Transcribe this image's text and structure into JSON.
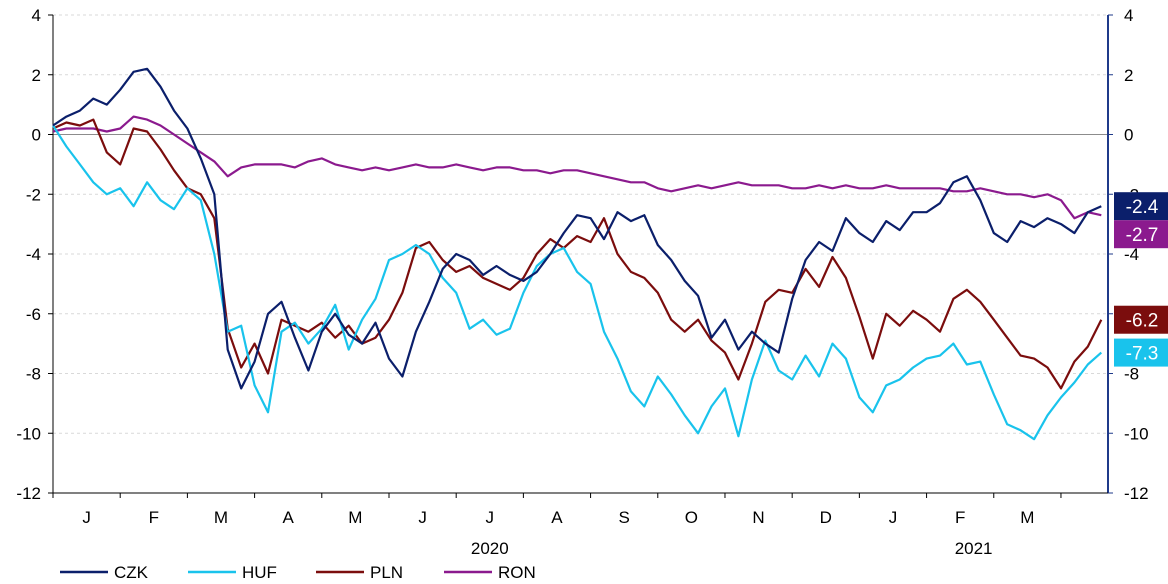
{
  "chart_data": {
    "type": "line",
    "title": "",
    "xlabel": "",
    "ylabel": "",
    "ylim": [
      -12,
      4
    ],
    "y_ticks": [
      4,
      2,
      0,
      -2,
      -4,
      -6,
      -8,
      -10,
      -12
    ],
    "y_ticks_right": [
      4,
      2,
      0,
      -2,
      -4,
      -6,
      -8,
      -10,
      -12
    ],
    "grid": true,
    "legend_placement": "bottom-left",
    "x_range_months": [
      0,
      15.7
    ],
    "month_labels": [
      "J",
      "F",
      "M",
      "A",
      "M",
      "J",
      "J",
      "A",
      "S",
      "O",
      "N",
      "D",
      "J",
      "F",
      "M"
    ],
    "year_labels": [
      {
        "label": "2020",
        "month_index": 6
      },
      {
        "label": "2021",
        "month_index": 13.2
      }
    ],
    "series": [
      {
        "name": "CZK",
        "color": "#0b1f6b",
        "end_label": "-2.4",
        "x": [
          0,
          0.2,
          0.4,
          0.6,
          0.8,
          1.0,
          1.2,
          1.4,
          1.6,
          1.8,
          2.0,
          2.2,
          2.4,
          2.6,
          2.8,
          3.0,
          3.2,
          3.4,
          3.6,
          3.8,
          4.0,
          4.2,
          4.4,
          4.6,
          4.8,
          5.0,
          5.2,
          5.4,
          5.6,
          5.8,
          6.0,
          6.2,
          6.4,
          6.6,
          6.8,
          7.0,
          7.2,
          7.4,
          7.6,
          7.8,
          8.0,
          8.2,
          8.4,
          8.6,
          8.8,
          9.0,
          9.2,
          9.4,
          9.6,
          9.8,
          10.0,
          10.2,
          10.4,
          10.6,
          10.8,
          11.0,
          11.2,
          11.4,
          11.6,
          11.8,
          12.0,
          12.2,
          12.4,
          12.6,
          12.8,
          13.0,
          13.2,
          13.4,
          13.6,
          13.8,
          14.0,
          14.2,
          14.4,
          14.6,
          14.8,
          15.0,
          15.2,
          15.4,
          15.6
        ],
        "values": [
          0.3,
          0.6,
          0.8,
          1.2,
          1.0,
          1.5,
          2.1,
          2.2,
          1.6,
          0.8,
          0.2,
          -0.8,
          -2.0,
          -7.2,
          -8.5,
          -7.6,
          -6.0,
          -5.6,
          -6.8,
          -7.9,
          -6.6,
          -6.0,
          -6.7,
          -7.0,
          -6.3,
          -7.5,
          -8.1,
          -6.6,
          -5.6,
          -4.5,
          -4.0,
          -4.2,
          -4.7,
          -4.4,
          -4.7,
          -4.9,
          -4.6,
          -4.0,
          -3.3,
          -2.7,
          -2.8,
          -3.5,
          -2.6,
          -2.9,
          -2.7,
          -3.7,
          -4.2,
          -4.9,
          -5.4,
          -6.8,
          -6.2,
          -7.2,
          -6.6,
          -7.0,
          -7.3,
          -5.5,
          -4.2,
          -3.6,
          -3.9,
          -2.8,
          -3.3,
          -3.6,
          -2.9,
          -3.2,
          -2.6,
          -2.6,
          -2.3,
          -1.6,
          -1.4,
          -2.2,
          -3.3,
          -3.6,
          -2.9,
          -3.1,
          -2.8,
          -3.0,
          -3.3,
          -2.6,
          -2.4
        ]
      },
      {
        "name": "HUF",
        "color": "#19c3ec",
        "end_label": "-7.3",
        "x": [
          0,
          0.2,
          0.4,
          0.6,
          0.8,
          1.0,
          1.2,
          1.4,
          1.6,
          1.8,
          2.0,
          2.2,
          2.4,
          2.6,
          2.8,
          3.0,
          3.2,
          3.4,
          3.6,
          3.8,
          4.0,
          4.2,
          4.4,
          4.6,
          4.8,
          5.0,
          5.2,
          5.4,
          5.6,
          5.8,
          6.0,
          6.2,
          6.4,
          6.6,
          6.8,
          7.0,
          7.2,
          7.4,
          7.6,
          7.8,
          8.0,
          8.2,
          8.4,
          8.6,
          8.8,
          9.0,
          9.2,
          9.4,
          9.6,
          9.8,
          10.0,
          10.2,
          10.4,
          10.6,
          10.8,
          11.0,
          11.2,
          11.4,
          11.6,
          11.8,
          12.0,
          12.2,
          12.4,
          12.6,
          12.8,
          13.0,
          13.2,
          13.4,
          13.6,
          13.8,
          14.0,
          14.2,
          14.4,
          14.6,
          14.8,
          15.0,
          15.2,
          15.4,
          15.6
        ],
        "values": [
          0.3,
          -0.4,
          -1.0,
          -1.6,
          -2.0,
          -1.8,
          -2.4,
          -1.6,
          -2.2,
          -2.5,
          -1.8,
          -2.2,
          -4.0,
          -6.6,
          -6.4,
          -8.4,
          -9.3,
          -6.6,
          -6.3,
          -7.0,
          -6.5,
          -5.7,
          -7.2,
          -6.2,
          -5.5,
          -4.2,
          -4.0,
          -3.7,
          -4.0,
          -4.8,
          -5.3,
          -6.5,
          -6.2,
          -6.7,
          -6.5,
          -5.3,
          -4.4,
          -4.0,
          -3.8,
          -4.6,
          -5.0,
          -6.6,
          -7.5,
          -8.6,
          -9.1,
          -8.1,
          -8.7,
          -9.4,
          -10.0,
          -9.1,
          -8.5,
          -10.1,
          -8.2,
          -6.9,
          -7.9,
          -8.2,
          -7.4,
          -8.1,
          -7.0,
          -7.5,
          -8.8,
          -9.3,
          -8.4,
          -8.2,
          -7.8,
          -7.5,
          -7.4,
          -7.0,
          -7.7,
          -7.6,
          -8.7,
          -9.7,
          -9.9,
          -10.2,
          -9.4,
          -8.8,
          -8.3,
          -7.7,
          -7.3
        ]
      },
      {
        "name": "PLN",
        "color": "#7b0d0d",
        "end_label": "-6.2",
        "x": [
          0,
          0.2,
          0.4,
          0.6,
          0.8,
          1.0,
          1.2,
          1.4,
          1.6,
          1.8,
          2.0,
          2.2,
          2.4,
          2.6,
          2.8,
          3.0,
          3.2,
          3.4,
          3.6,
          3.8,
          4.0,
          4.2,
          4.4,
          4.6,
          4.8,
          5.0,
          5.2,
          5.4,
          5.6,
          5.8,
          6.0,
          6.2,
          6.4,
          6.6,
          6.8,
          7.0,
          7.2,
          7.4,
          7.6,
          7.8,
          8.0,
          8.2,
          8.4,
          8.6,
          8.8,
          9.0,
          9.2,
          9.4,
          9.6,
          9.8,
          10.0,
          10.2,
          10.4,
          10.6,
          10.8,
          11.0,
          11.2,
          11.4,
          11.6,
          11.8,
          12.0,
          12.2,
          12.4,
          12.6,
          12.8,
          13.0,
          13.2,
          13.4,
          13.6,
          13.8,
          14.0,
          14.2,
          14.4,
          14.6,
          14.8,
          15.0,
          15.2,
          15.4,
          15.6
        ],
        "values": [
          0.2,
          0.4,
          0.3,
          0.5,
          -0.6,
          -1.0,
          0.2,
          0.1,
          -0.5,
          -1.2,
          -1.8,
          -2.0,
          -2.8,
          -6.5,
          -7.8,
          -7.0,
          -8.0,
          -6.2,
          -6.4,
          -6.6,
          -6.3,
          -6.8,
          -6.4,
          -7.0,
          -6.8,
          -6.2,
          -5.3,
          -3.8,
          -3.6,
          -4.2,
          -4.6,
          -4.4,
          -4.8,
          -5.0,
          -5.2,
          -4.8,
          -4.0,
          -3.5,
          -3.8,
          -3.4,
          -3.6,
          -2.8,
          -4.0,
          -4.6,
          -4.8,
          -5.3,
          -6.2,
          -6.6,
          -6.2,
          -6.9,
          -7.3,
          -8.2,
          -7.0,
          -5.6,
          -5.2,
          -5.3,
          -4.5,
          -5.1,
          -4.1,
          -4.8,
          -6.1,
          -7.5,
          -6.0,
          -6.4,
          -5.9,
          -6.2,
          -6.6,
          -5.5,
          -5.2,
          -5.6,
          -6.2,
          -6.8,
          -7.4,
          -7.5,
          -7.8,
          -8.5,
          -7.6,
          -7.1,
          -6.2
        ]
      },
      {
        "name": "RON",
        "color": "#8b1a8e",
        "end_label": "-2.7",
        "x": [
          0,
          0.2,
          0.4,
          0.6,
          0.8,
          1.0,
          1.2,
          1.4,
          1.6,
          1.8,
          2.0,
          2.2,
          2.4,
          2.6,
          2.8,
          3.0,
          3.2,
          3.4,
          3.6,
          3.8,
          4.0,
          4.2,
          4.4,
          4.6,
          4.8,
          5.0,
          5.2,
          5.4,
          5.6,
          5.8,
          6.0,
          6.2,
          6.4,
          6.6,
          6.8,
          7.0,
          7.2,
          7.4,
          7.6,
          7.8,
          8.0,
          8.2,
          8.4,
          8.6,
          8.8,
          9.0,
          9.2,
          9.4,
          9.6,
          9.8,
          10.0,
          10.2,
          10.4,
          10.6,
          10.8,
          11.0,
          11.2,
          11.4,
          11.6,
          11.8,
          12.0,
          12.2,
          12.4,
          12.6,
          12.8,
          13.0,
          13.2,
          13.4,
          13.6,
          13.8,
          14.0,
          14.2,
          14.4,
          14.6,
          14.8,
          15.0,
          15.2,
          15.4,
          15.6
        ],
        "values": [
          0.1,
          0.2,
          0.2,
          0.2,
          0.1,
          0.2,
          0.6,
          0.5,
          0.3,
          0.0,
          -0.3,
          -0.6,
          -0.9,
          -1.4,
          -1.1,
          -1.0,
          -1.0,
          -1.0,
          -1.1,
          -0.9,
          -0.8,
          -1.0,
          -1.1,
          -1.2,
          -1.1,
          -1.2,
          -1.1,
          -1.0,
          -1.1,
          -1.1,
          -1.0,
          -1.1,
          -1.2,
          -1.1,
          -1.1,
          -1.2,
          -1.2,
          -1.3,
          -1.2,
          -1.2,
          -1.3,
          -1.4,
          -1.5,
          -1.6,
          -1.6,
          -1.8,
          -1.9,
          -1.8,
          -1.7,
          -1.8,
          -1.7,
          -1.6,
          -1.7,
          -1.7,
          -1.7,
          -1.8,
          -1.8,
          -1.7,
          -1.8,
          -1.7,
          -1.8,
          -1.8,
          -1.7,
          -1.8,
          -1.8,
          -1.8,
          -1.8,
          -1.9,
          -1.9,
          -1.8,
          -1.9,
          -2.0,
          -2.0,
          -2.1,
          -2.0,
          -2.2,
          -2.8,
          -2.6,
          -2.7
        ]
      }
    ]
  }
}
